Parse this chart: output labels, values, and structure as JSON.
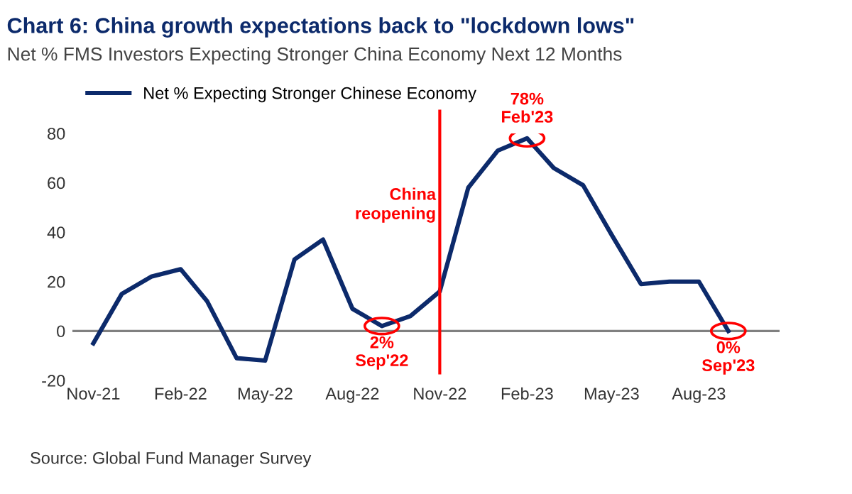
{
  "chart_data": {
    "type": "line",
    "title": "Chart 6: China growth expectations back to \"lockdown lows\"",
    "subtitle": "Net % FMS Investors Expecting Stronger China Economy Next 12 Months",
    "x": [
      "2021-11",
      "2021-12",
      "2022-01",
      "2022-02",
      "2022-03",
      "2022-04",
      "2022-05",
      "2022-06",
      "2022-07",
      "2022-08",
      "2022-09",
      "2022-10",
      "2022-11",
      "2022-12",
      "2023-01",
      "2023-02",
      "2023-03",
      "2023-04",
      "2023-05",
      "2023-06",
      "2023-07",
      "2023-08",
      "2023-09"
    ],
    "series": [
      {
        "name": "Net % Expecting Stronger Chinese Economy",
        "color": "#0c2a6b",
        "values": [
          -5,
          15,
          22,
          25,
          12,
          -11,
          -12,
          29,
          37,
          9,
          2,
          6,
          16,
          58,
          73,
          78,
          66,
          59,
          39,
          19,
          20,
          20,
          0
        ]
      }
    ],
    "xlim": [
      "2021-10-10",
      "2023-10-25"
    ],
    "xticks": [
      {
        "value": "2021-11",
        "label": "Nov-21"
      },
      {
        "value": "2022-02",
        "label": "Feb-22"
      },
      {
        "value": "2022-05",
        "label": "May-22"
      },
      {
        "value": "2022-08",
        "label": "Aug-22"
      },
      {
        "value": "2022-11",
        "label": "Nov-22"
      },
      {
        "value": "2023-02",
        "label": "Feb-23"
      },
      {
        "value": "2023-05",
        "label": "May-23"
      },
      {
        "value": "2023-08",
        "label": "Aug-23"
      }
    ],
    "ylim": [
      -20,
      80
    ],
    "yticks": [
      -20,
      0,
      20,
      40,
      60,
      80
    ],
    "ref_lines": [
      {
        "axis": "y",
        "value": 0,
        "color": "#808080"
      },
      {
        "axis": "x",
        "value": "2022-11",
        "label": "China\nreopening",
        "color": "#ff0000"
      }
    ],
    "annotations": [
      {
        "text": "2%\nSep'22",
        "x": "2022-09",
        "y": 2
      },
      {
        "text": "78%\nFeb'23",
        "x": "2023-02",
        "y": 78
      },
      {
        "text": "0%\nSep'23",
        "x": "2023-09",
        "y": 0
      },
      "Source: Global Fund Manager Survey"
    ],
    "legend": "top left",
    "grid": false,
    "marker": "none",
    "line_style": "solid"
  }
}
